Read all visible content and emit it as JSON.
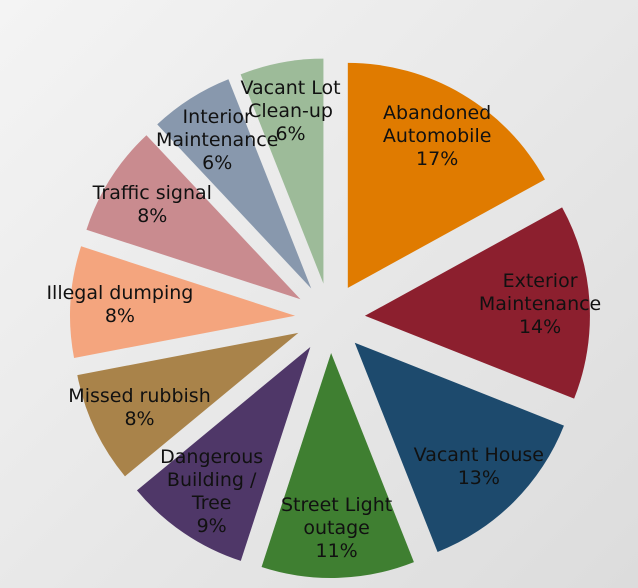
{
  "chart_data": {
    "type": "pie",
    "categories": [
      "Abandoned Automobile",
      "Exterior Maintenance",
      "Vacant House",
      "Street Light outage",
      "Dangerous Building / Tree",
      "Missed rubbish",
      "Illegal dumping",
      "Traffic signal",
      "Interior Maintenance",
      "Vacant Lot Clean-up"
    ],
    "values": [
      17,
      14,
      13,
      11,
      9,
      8,
      8,
      8,
      6,
      6
    ],
    "value_labels": [
      "17%",
      "14%",
      "13%",
      "11%",
      "9%",
      "8%",
      "8%",
      "8%",
      "6%",
      "6%"
    ],
    "colors": [
      "#e07b00",
      "#8c1f2e",
      "#1d4a6d",
      "#3f7f31",
      "#4f3768",
      "#a9834a",
      "#f4a57e",
      "#c98b8f",
      "#8898ad",
      "#9dbb99"
    ]
  }
}
